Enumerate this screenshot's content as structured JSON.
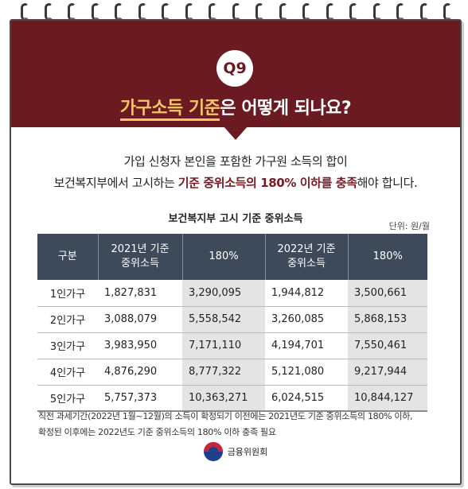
{
  "question_badge": "Q9",
  "headline": {
    "highlight": "가구소득 기준",
    "rest": "은 어떻게 되나요?"
  },
  "intro": {
    "line1": "가입 신청자 본인을 포함한 가구원 소득의 합이",
    "line2_pre": "보건복지부에서 고시하는 ",
    "line2_emph": "기준 중위소득의 180% 이하를 충족",
    "line2_post": "해야 합니다."
  },
  "table": {
    "title": "보건복지부 고시 기준 중위소득",
    "unit": "단위: 원/월",
    "headers": [
      "구분",
      "2021년 기준\n중위소득",
      "180%",
      "2022년 기준\n중위소득",
      "180%"
    ],
    "rows": [
      [
        "1인가구",
        "1,827,831",
        "3,290,095",
        "1,944,812",
        "3,500,661"
      ],
      [
        "2인가구",
        "3,088,079",
        "5,558,542",
        "3,260,085",
        "5,868,153"
      ],
      [
        "3인가구",
        "3,983,950",
        "7,171,110",
        "4,194,701",
        "7,550,461"
      ],
      [
        "4인가구",
        "4,876,290",
        "8,777,322",
        "5,121,080",
        "9,217,944"
      ],
      [
        "5인가구",
        "5,757,373",
        "10,363,271",
        "6,024,515",
        "10,844,127"
      ]
    ]
  },
  "footnote": {
    "line1": "직전 과세기간(2022년 1월~12월)의 소득이 확정되기 이전에는 2021년도 기준 중위소득의 180% 이하,",
    "line2": "확정된 이후에는 2022년도 기준 중위소득의 180% 이하 충족 필요"
  },
  "logo_text": "금융위원회",
  "colors": {
    "header_bg": "#6c1a21",
    "highlight": "#f3c864",
    "table_header": "#3c4a5a"
  }
}
